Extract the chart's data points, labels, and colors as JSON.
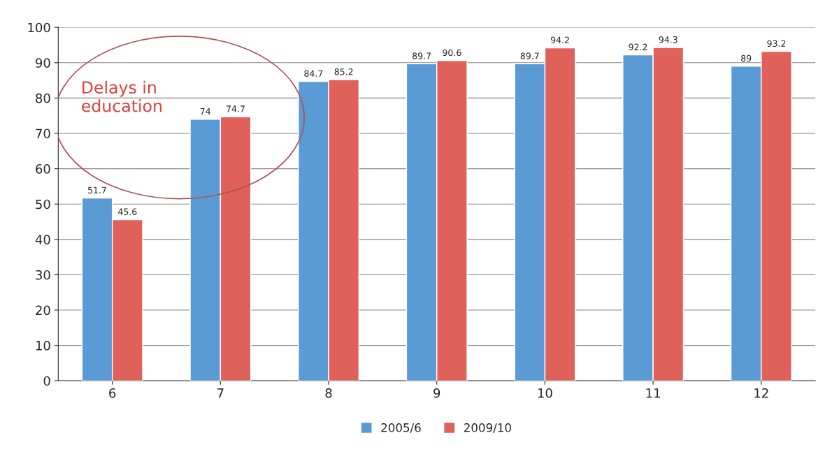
{
  "chart_data": {
    "type": "bar",
    "categories": [
      "6",
      "7",
      "8",
      "9",
      "10",
      "11",
      "12"
    ],
    "series": [
      {
        "name": "2005/6",
        "color": "#5b9bd5",
        "values": [
          51.7,
          74,
          84.7,
          89.7,
          89.7,
          92.2,
          89
        ]
      },
      {
        "name": "2009/10",
        "color": "#e0605a",
        "values": [
          45.6,
          74.7,
          85.2,
          90.6,
          94.2,
          94.3,
          93.2
        ]
      }
    ],
    "ylim": [
      0,
      100
    ],
    "yticks": [
      0,
      10,
      20,
      30,
      40,
      50,
      60,
      70,
      80,
      90,
      100
    ],
    "grid": "y",
    "legend": "bottom",
    "data_labels": true,
    "annotations": [
      "Delays in\neducation"
    ]
  }
}
